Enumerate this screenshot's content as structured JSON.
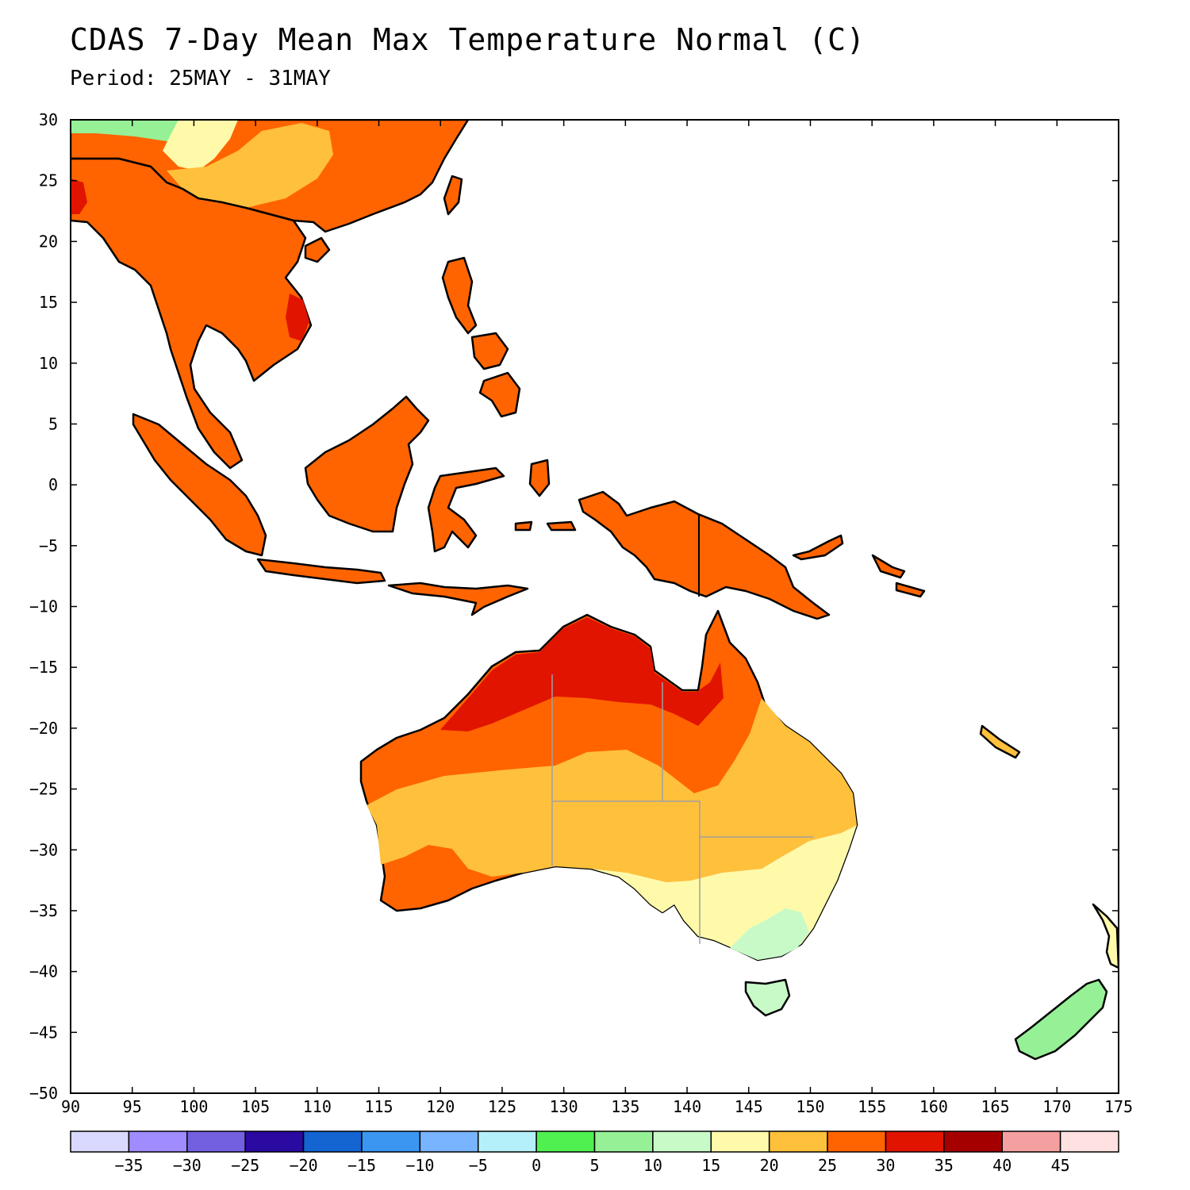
{
  "header": {
    "title": "CDAS 7-Day Mean Max Temperature Normal (C)",
    "subtitle": "Period: 25MAY - 31MAY"
  },
  "map": {
    "lon_range": [
      90,
      175
    ],
    "lat_range": [
      -50,
      30
    ],
    "lon_ticks": [
      "90",
      "95",
      "100",
      "105",
      "110",
      "115",
      "120",
      "125",
      "130",
      "135",
      "140",
      "145",
      "150",
      "155",
      "160",
      "165",
      "170",
      "175"
    ],
    "lat_ticks": [
      "30",
      "25",
      "20",
      "15",
      "10",
      "5",
      "0",
      "-5",
      "-10",
      "-15",
      "-20",
      "-25",
      "-30",
      "-35",
      "-40",
      "-45",
      "-50"
    ],
    "regions": [
      {
        "name": "Southeast Asia mainland",
        "band": "25-30"
      },
      {
        "name": "Southern China",
        "band": "20-25"
      },
      {
        "name": "Maritime Continent",
        "band": "25-30"
      },
      {
        "name": "New Guinea",
        "band": "25-30"
      },
      {
        "name": "Northern Australia",
        "band": "30-35"
      },
      {
        "name": "Central Australia",
        "band": "25-30"
      },
      {
        "name": "Southern interior Australia",
        "band": "20-25"
      },
      {
        "name": "South coast Australia",
        "band": "15-20"
      },
      {
        "name": "Tasmania",
        "band": "10-15"
      },
      {
        "name": "New Zealand",
        "band": "10-15"
      }
    ]
  },
  "legend": {
    "labels": [
      "-35",
      "-30",
      "-25",
      "-20",
      "-15",
      "-10",
      "-5",
      "0",
      "5",
      "10",
      "15",
      "20",
      "25",
      "30",
      "35",
      "40",
      "45"
    ],
    "colors": [
      "#d9d9ff",
      "#a08cff",
      "#7360e0",
      "#2a0aa0",
      "#1464d2",
      "#3a96f0",
      "#78b4ff",
      "#b4f0fa",
      "#50f050",
      "#96f096",
      "#c8fac8",
      "#fffaaa",
      "#ffc03c",
      "#ff6400",
      "#e11400",
      "#a50000",
      "#f5a0a0",
      "#ffe1e1"
    ]
  }
}
